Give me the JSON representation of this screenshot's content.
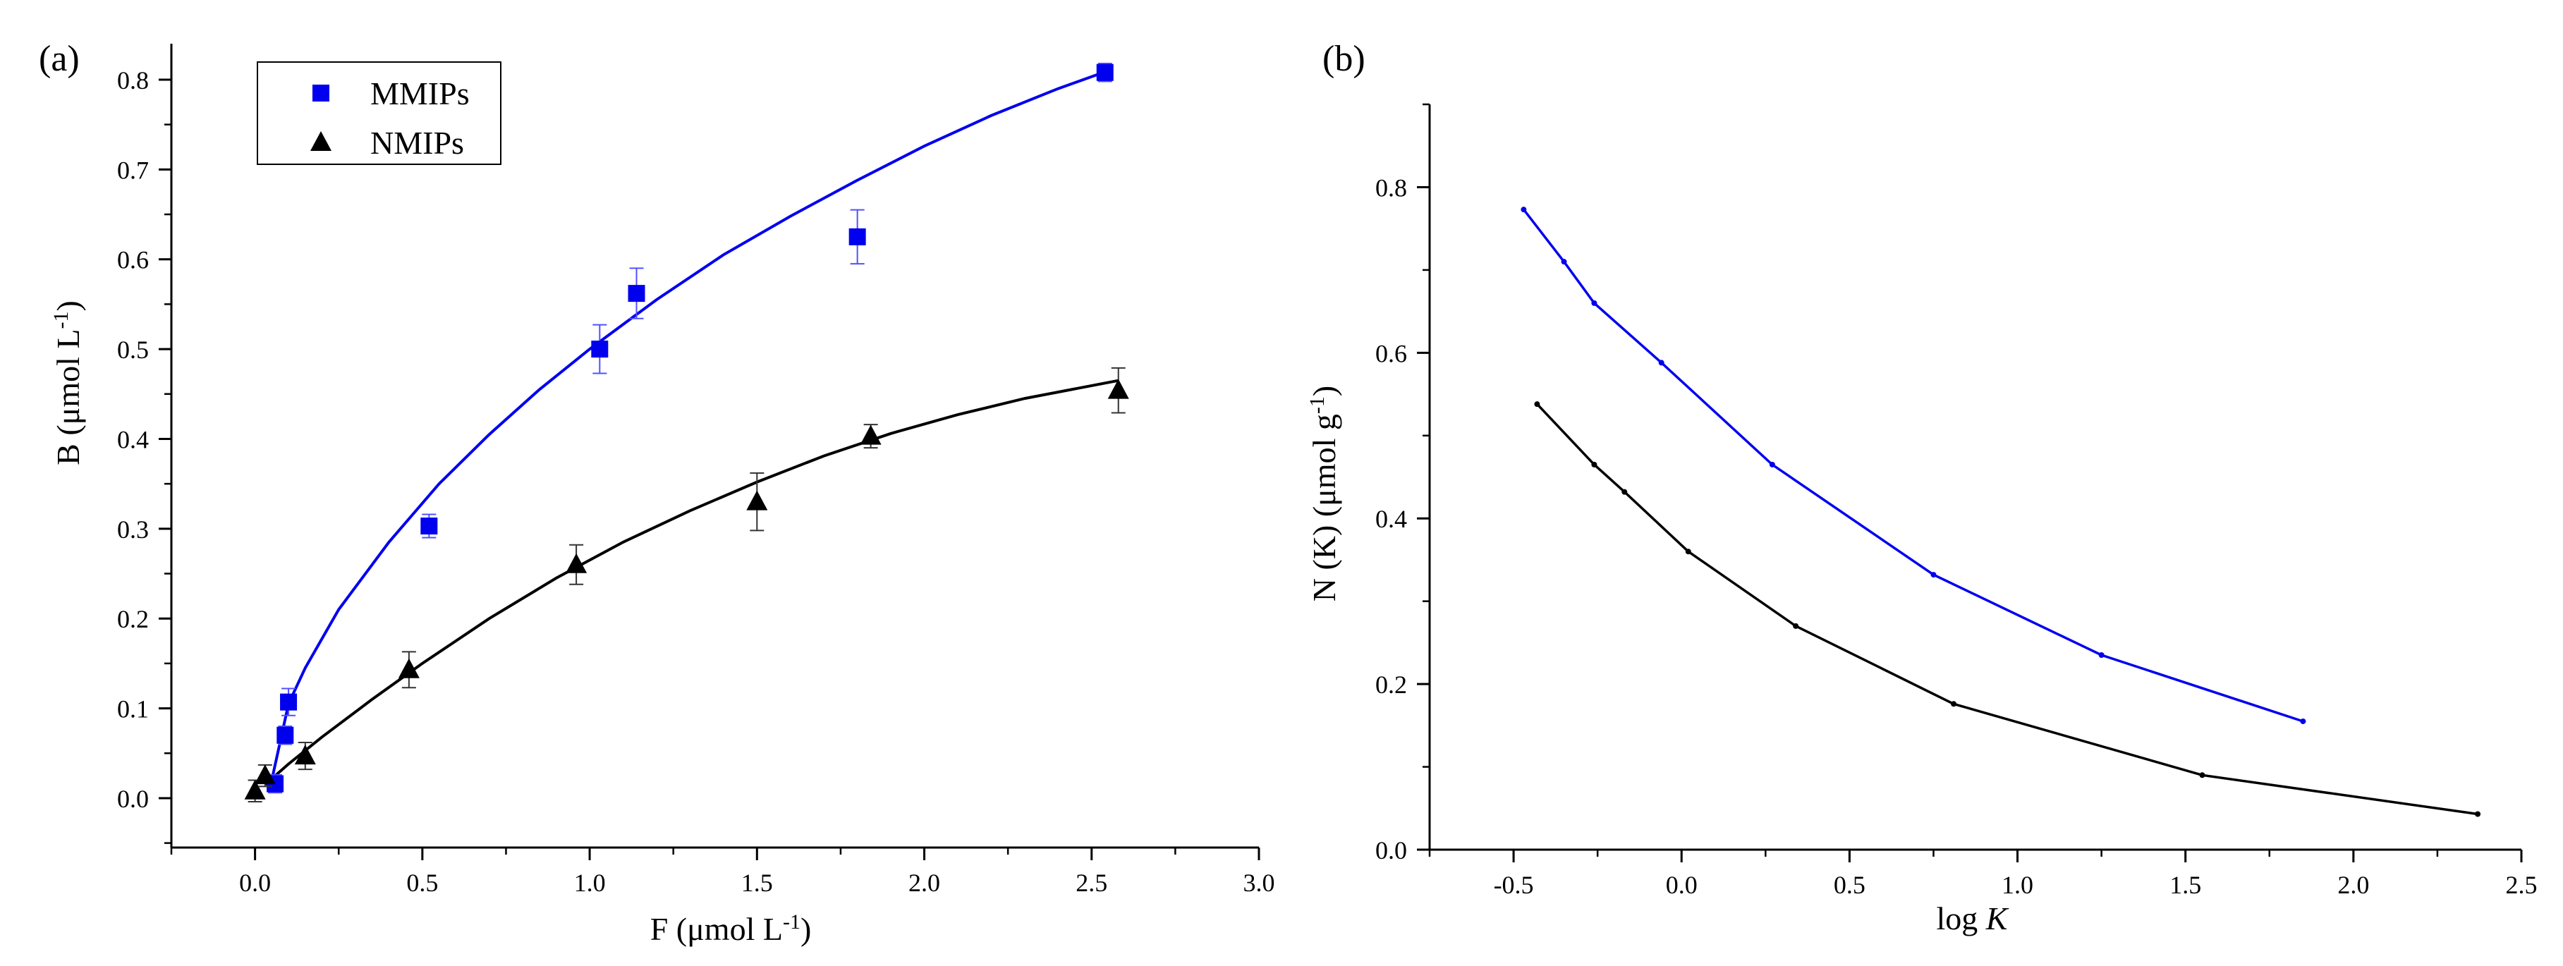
{
  "chart_data": [
    {
      "type": "scatter",
      "panel_label": "(a)",
      "xlabel_main": "F (μmol L",
      "xlabel_sup": "-1",
      "xlabel_end": ")",
      "ylabel_main": "B (μmol L",
      "ylabel_sup": "-1",
      "ylabel_end": ")",
      "xlim": [
        -0.25,
        3.0
      ],
      "ylim": [
        -0.055,
        0.84
      ],
      "xticks": [
        "0.0",
        "0.5",
        "1.0",
        "1.5",
        "2.0",
        "2.5",
        "3.0"
      ],
      "yticks": [
        "0.0",
        "0.1",
        "0.2",
        "0.3",
        "0.4",
        "0.5",
        "0.6",
        "0.7",
        "0.8"
      ],
      "legend_position": "top-left",
      "series": [
        {
          "name": "MMIPs",
          "marker": "square",
          "color": "#0000ee",
          "x": [
            0.06,
            0.09,
            0.1,
            0.52,
            1.03,
            1.14,
            1.8,
            2.54
          ],
          "y": [
            0.016,
            0.07,
            0.107,
            0.303,
            0.5,
            0.562,
            0.625,
            0.808
          ],
          "err": [
            0.01,
            0.01,
            0.015,
            0.013,
            0.027,
            0.028,
            0.03,
            0.01
          ],
          "fit_x": [
            0.05,
            0.1,
            0.15,
            0.25,
            0.4,
            0.55,
            0.7,
            0.85,
            1.0,
            1.2,
            1.4,
            1.6,
            1.8,
            2.0,
            2.2,
            2.4,
            2.55
          ],
          "fit_y": [
            0.02,
            0.105,
            0.145,
            0.21,
            0.285,
            0.35,
            0.405,
            0.455,
            0.5,
            0.555,
            0.605,
            0.648,
            0.688,
            0.726,
            0.76,
            0.79,
            0.81
          ]
        },
        {
          "name": "NMIPs",
          "marker": "triangle",
          "color": "#000000",
          "x": [
            0.0,
            0.03,
            0.15,
            0.46,
            0.96,
            1.5,
            1.84,
            2.58
          ],
          "y": [
            0.008,
            0.025,
            0.047,
            0.143,
            0.26,
            0.33,
            0.403,
            0.454
          ],
          "err": [
            0.012,
            0.012,
            0.015,
            0.02,
            0.022,
            0.032,
            0.013,
            0.025
          ],
          "fit_x": [
            0.03,
            0.1,
            0.2,
            0.35,
            0.5,
            0.7,
            0.9,
            1.1,
            1.3,
            1.5,
            1.7,
            1.9,
            2.1,
            2.3,
            2.58
          ],
          "fit_y": [
            0.015,
            0.038,
            0.068,
            0.11,
            0.15,
            0.2,
            0.245,
            0.285,
            0.32,
            0.352,
            0.381,
            0.406,
            0.427,
            0.445,
            0.465
          ]
        }
      ]
    },
    {
      "type": "line",
      "panel_label": "(b)",
      "xlabel_main": "log ",
      "xlabel_italic": "K",
      "ylabel_main": "N (K) (μmol g",
      "ylabel_sup": "-1",
      "ylabel_end": ")",
      "xlim": [
        -0.75,
        2.5
      ],
      "ylim": [
        0.0,
        0.9
      ],
      "xticks": [
        "-0.5",
        "0.0",
        "0.5",
        "1.0",
        "1.5",
        "2.0",
        "2.5"
      ],
      "yticks": [
        "0.0",
        "0.2",
        "0.4",
        "0.6",
        "0.8"
      ],
      "series": [
        {
          "name": "MMIPs",
          "color": "#0000ee",
          "x": [
            -0.47,
            -0.35,
            -0.26,
            -0.06,
            0.27,
            0.75,
            1.25,
            1.85
          ],
          "y": [
            0.773,
            0.71,
            0.66,
            0.588,
            0.465,
            0.332,
            0.235,
            0.155
          ]
        },
        {
          "name": "NMIPs",
          "color": "#000000",
          "x": [
            -0.43,
            -0.26,
            -0.17,
            0.02,
            0.34,
            0.81,
            1.55,
            2.37
          ],
          "y": [
            0.538,
            0.465,
            0.432,
            0.36,
            0.27,
            0.176,
            0.09,
            0.043
          ]
        }
      ]
    }
  ]
}
